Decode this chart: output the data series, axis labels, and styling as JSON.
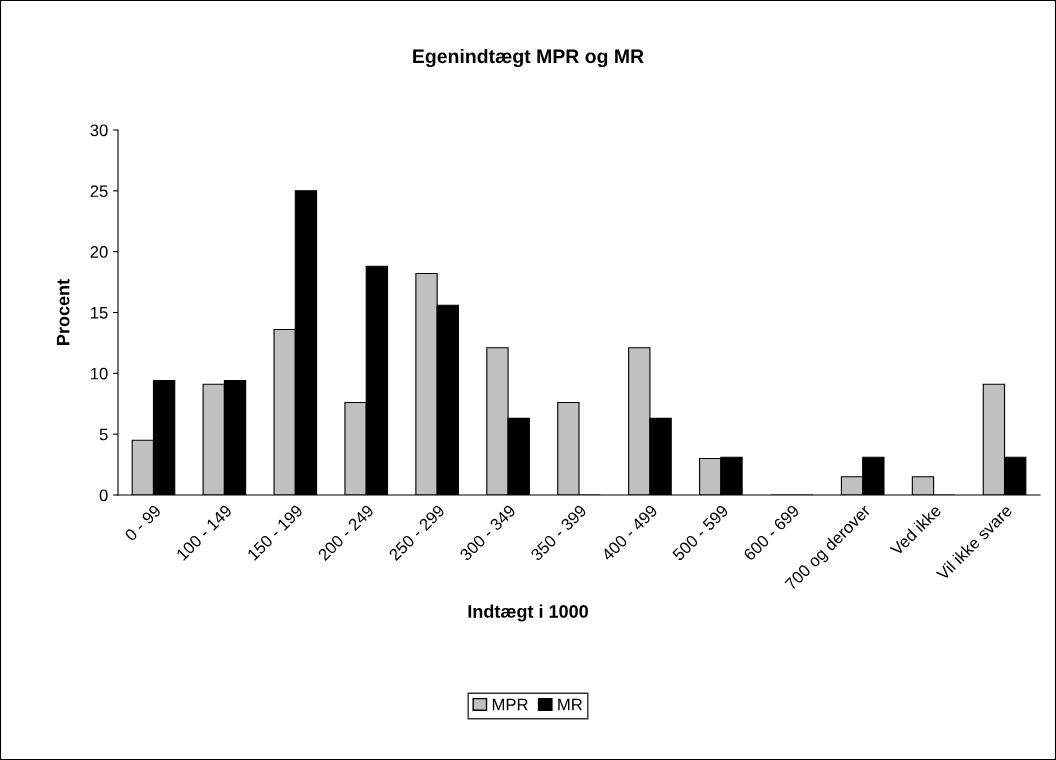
{
  "chart_data": {
    "type": "bar",
    "title": "Egenindtægt MPR og MR",
    "xlabel": "Indtægt i 1000",
    "ylabel": "Procent",
    "categories": [
      "0 - 99",
      "100 - 149",
      "150 - 199",
      "200 - 249",
      "250 - 299",
      "300 - 349",
      "350 - 399",
      "400 - 499",
      "500 - 599",
      "600 - 699",
      "700 og derover",
      "Ved ikke",
      "Vil ikke svare"
    ],
    "series": [
      {
        "name": "MPR",
        "color": "#c0c0c0",
        "values": [
          4.5,
          9.1,
          13.6,
          7.6,
          18.2,
          12.1,
          7.6,
          12.1,
          3.0,
          0,
          1.5,
          1.5,
          9.1
        ]
      },
      {
        "name": "MR",
        "color": "#000000",
        "values": [
          9.4,
          9.4,
          25.0,
          18.8,
          15.6,
          6.3,
          0,
          6.3,
          3.1,
          0,
          3.1,
          0,
          3.1
        ]
      }
    ],
    "ylim": [
      0,
      30
    ],
    "yticks": [
      0,
      5,
      10,
      15,
      20,
      25,
      30
    ],
    "grid": false,
    "legend": "bottom"
  }
}
